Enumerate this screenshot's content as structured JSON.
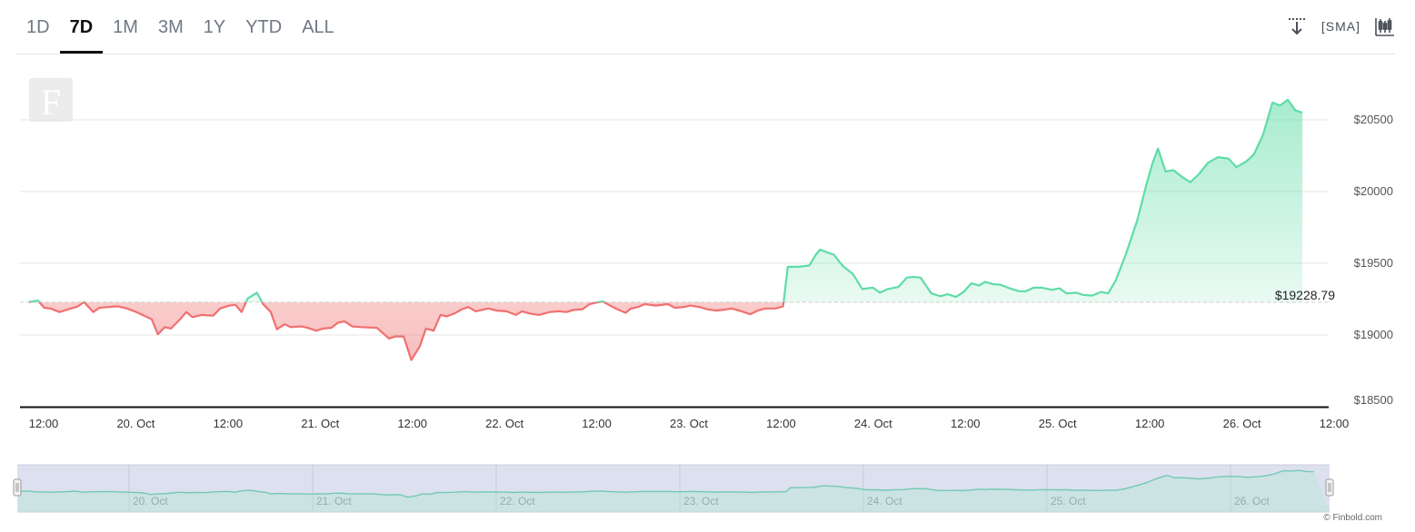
{
  "range_tabs": [
    {
      "label": "1D",
      "active": false
    },
    {
      "label": "7D",
      "active": true
    },
    {
      "label": "1M",
      "active": false
    },
    {
      "label": "3M",
      "active": false
    },
    {
      "label": "1Y",
      "active": false
    },
    {
      "label": "YTD",
      "active": false
    },
    {
      "label": "ALL",
      "active": false
    }
  ],
  "toolbar": {
    "download_icon": "download-arrow-icon",
    "sma_label": "SMA",
    "candlestick_icon": "candlestick-icon"
  },
  "watermark_letter": "F",
  "credit": "© Finbold.com",
  "colors": {
    "up": "#5fdca6",
    "down": "#f07070",
    "up_fill": "#c8f2df",
    "down_fill": "#f9c9c9",
    "navigator_bg": "#dde1ef",
    "navigator_line": "#73c9b5"
  },
  "chart_data": {
    "type": "area",
    "series_currency": "$",
    "reference_label": "$19228.79",
    "reference_value": 19228.79,
    "x_unit": "hours since 19 Oct 00:00",
    "x_ticks": [
      {
        "x": 12,
        "label": "12:00"
      },
      {
        "x": 24,
        "label": "20. Oct"
      },
      {
        "x": 36,
        "label": "12:00"
      },
      {
        "x": 48,
        "label": "21. Oct"
      },
      {
        "x": 60,
        "label": "12:00"
      },
      {
        "x": 72,
        "label": "22. Oct"
      },
      {
        "x": 84,
        "label": "12:00"
      },
      {
        "x": 96,
        "label": "23. Oct"
      },
      {
        "x": 108,
        "label": "12:00"
      },
      {
        "x": 120,
        "label": "24. Oct"
      },
      {
        "x": 132,
        "label": "12:00"
      },
      {
        "x": 144,
        "label": "25. Oct"
      },
      {
        "x": 156,
        "label": "12:00"
      },
      {
        "x": 168,
        "label": "26. Oct"
      },
      {
        "x": 180,
        "label": "12:00"
      }
    ],
    "y_ticks": [
      18500,
      19000,
      19500,
      20000,
      20500
    ],
    "y_tick_labels": [
      "$18500",
      "$19000",
      "$19500",
      "$20000",
      "$20500"
    ],
    "ylim": [
      18500,
      20700
    ],
    "xlim": [
      12,
      180
    ],
    "navigator_labels": [
      "20. Oct",
      "21. Oct",
      "22. Oct",
      "23. Oct",
      "24. Oct",
      "25. Oct",
      "26. Oct"
    ],
    "points": [
      [
        12.2,
        19230
      ],
      [
        13.4,
        19240
      ],
      [
        14.2,
        19190
      ],
      [
        15.0,
        19185
      ],
      [
        16.2,
        19160
      ],
      [
        17.4,
        19180
      ],
      [
        18.6,
        19200
      ],
      [
        19.4,
        19230
      ],
      [
        20.6,
        19160
      ],
      [
        21.4,
        19190
      ],
      [
        22.6,
        19195
      ],
      [
        23.8,
        19200
      ],
      [
        25.0,
        19185
      ],
      [
        26.2,
        19160
      ],
      [
        27.4,
        19130
      ],
      [
        28.2,
        19110
      ],
      [
        29.0,
        19005
      ],
      [
        29.9,
        19055
      ],
      [
        30.7,
        19045
      ],
      [
        31.9,
        19110
      ],
      [
        32.7,
        19160
      ],
      [
        33.5,
        19125
      ],
      [
        34.7,
        19140
      ],
      [
        36.2,
        19135
      ],
      [
        37.1,
        19185
      ],
      [
        38.3,
        19205
      ],
      [
        39.1,
        19210
      ],
      [
        39.9,
        19160
      ],
      [
        40.7,
        19255
      ],
      [
        41.9,
        19295
      ],
      [
        42.7,
        19215
      ],
      [
        43.7,
        19160
      ],
      [
        44.5,
        19040
      ],
      [
        45.5,
        19075
      ],
      [
        46.3,
        19055
      ],
      [
        47.7,
        19060
      ],
      [
        48.5,
        19050
      ],
      [
        49.6,
        19030
      ],
      [
        50.5,
        19045
      ],
      [
        51.6,
        19050
      ],
      [
        52.4,
        19085
      ],
      [
        53.3,
        19095
      ],
      [
        54.3,
        19060
      ],
      [
        55.4,
        19055
      ],
      [
        57.5,
        19050
      ],
      [
        59.1,
        18975
      ],
      [
        59.9,
        18990
      ],
      [
        61.0,
        18990
      ],
      [
        62.0,
        18825
      ],
      [
        63.1,
        18920
      ],
      [
        63.9,
        19045
      ],
      [
        64.9,
        19030
      ],
      [
        65.8,
        19140
      ],
      [
        66.6,
        19130
      ],
      [
        67.6,
        19150
      ],
      [
        68.6,
        19180
      ],
      [
        69.4,
        19195
      ],
      [
        70.4,
        19165
      ],
      [
        72.0,
        19185
      ],
      [
        73.1,
        19170
      ],
      [
        74.4,
        19165
      ],
      [
        75.6,
        19140
      ],
      [
        76.4,
        19165
      ],
      [
        77.4,
        19150
      ],
      [
        78.6,
        19140
      ],
      [
        80.0,
        19160
      ],
      [
        81.2,
        19165
      ],
      [
        82.2,
        19160
      ],
      [
        83.1,
        19175
      ],
      [
        84.3,
        19180
      ],
      [
        85.2,
        19215
      ],
      [
        86.0,
        19225
      ],
      [
        86.9,
        19235
      ],
      [
        87.7,
        19210
      ],
      [
        88.8,
        19180
      ],
      [
        89.9,
        19155
      ],
      [
        90.6,
        19185
      ],
      [
        91.5,
        19195
      ],
      [
        92.4,
        19215
      ],
      [
        93.8,
        19205
      ],
      [
        95.4,
        19215
      ],
      [
        96.3,
        19190
      ],
      [
        97.5,
        19195
      ],
      [
        98.3,
        19205
      ],
      [
        99.5,
        19195
      ],
      [
        100.5,
        19180
      ],
      [
        101.6,
        19170
      ],
      [
        102.5,
        19175
      ],
      [
        103.7,
        19185
      ],
      [
        105.0,
        19165
      ],
      [
        106.1,
        19145
      ],
      [
        107.1,
        19170
      ],
      [
        108.1,
        19185
      ],
      [
        109.4,
        19185
      ],
      [
        110.4,
        19200
      ],
      [
        111.0,
        19475
      ],
      [
        112.4,
        19475
      ],
      [
        113.8,
        19485
      ],
      [
        114.6,
        19555
      ],
      [
        115.2,
        19595
      ],
      [
        116.2,
        19575
      ],
      [
        117.0,
        19560
      ],
      [
        118.2,
        19480
      ],
      [
        119.5,
        19425
      ],
      [
        120.7,
        19320
      ],
      [
        122.1,
        19330
      ],
      [
        123.0,
        19295
      ],
      [
        124.0,
        19320
      ],
      [
        125.4,
        19335
      ],
      [
        126.5,
        19400
      ],
      [
        127.3,
        19405
      ],
      [
        128.3,
        19400
      ],
      [
        129.7,
        19290
      ],
      [
        130.9,
        19270
      ],
      [
        131.8,
        19285
      ],
      [
        132.9,
        19265
      ],
      [
        133.9,
        19300
      ],
      [
        134.9,
        19360
      ],
      [
        135.9,
        19345
      ],
      [
        136.7,
        19370
      ],
      [
        137.7,
        19355
      ],
      [
        138.7,
        19350
      ],
      [
        139.9,
        19325
      ],
      [
        141.1,
        19305
      ],
      [
        142.0,
        19305
      ],
      [
        143.0,
        19330
      ],
      [
        144.1,
        19330
      ],
      [
        145.4,
        19315
      ],
      [
        146.4,
        19325
      ],
      [
        147.3,
        19290
      ],
      [
        148.6,
        19295
      ],
      [
        149.4,
        19280
      ],
      [
        150.6,
        19275
      ],
      [
        151.8,
        19300
      ],
      [
        152.7,
        19290
      ],
      [
        153.7,
        19380
      ],
      [
        155.0,
        19560
      ],
      [
        156.5,
        19800
      ],
      [
        157.7,
        20050
      ],
      [
        158.5,
        20200
      ],
      [
        159.2,
        20300
      ],
      [
        160.2,
        20140
      ],
      [
        161.2,
        20150
      ],
      [
        162.4,
        20100
      ],
      [
        163.4,
        20065
      ],
      [
        164.5,
        20120
      ],
      [
        165.7,
        20200
      ],
      [
        167.0,
        20240
      ],
      [
        168.4,
        20230
      ],
      [
        169.4,
        20170
      ],
      [
        170.7,
        20210
      ],
      [
        171.7,
        20260
      ],
      [
        172.9,
        20400
      ],
      [
        174.1,
        20620
      ],
      [
        175.1,
        20600
      ],
      [
        176.1,
        20640
      ],
      [
        177.1,
        20565
      ],
      [
        178.0,
        20550
      ]
    ]
  }
}
